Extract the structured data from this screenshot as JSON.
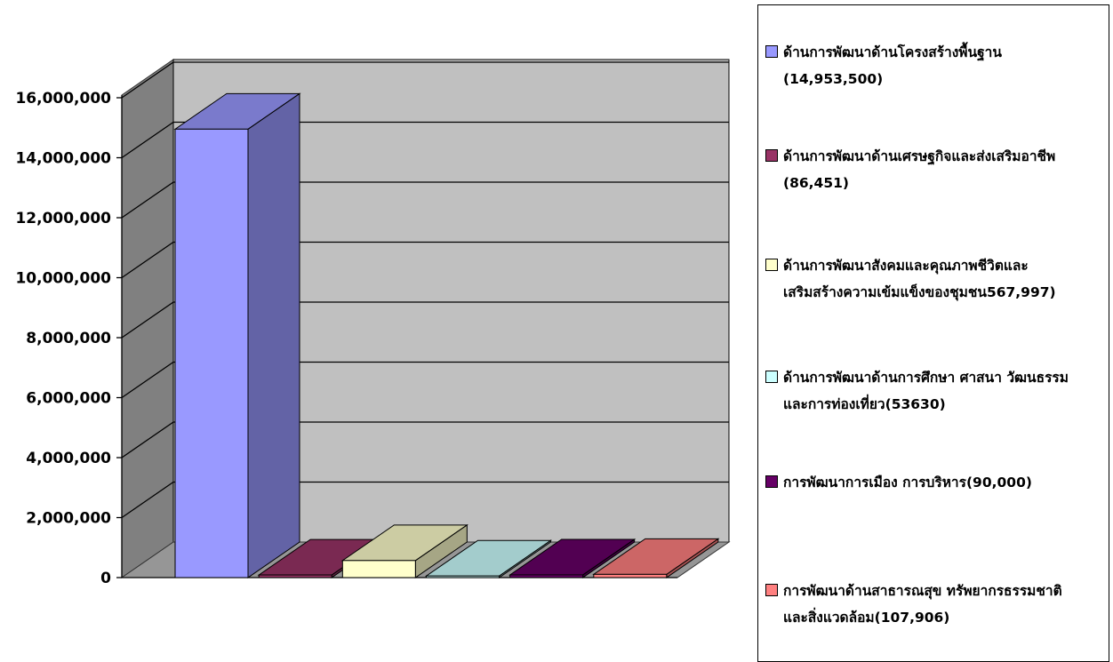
{
  "chart_data": {
    "type": "bar",
    "categories": [
      "ด้านการพัฒนาด้านโครงสร้างพื้นฐาน",
      "ด้านการพัฒนาด้านเศรษฐกิจและส่งเสริมอาชีพ",
      "ด้านการพัฒนาสังคมและคุณภาพชีวิตและเสริมสร้างความเข้มแข็งของชุมชน",
      "ด้านการพัฒนาด้านการศึกษา ศาสนา วัฒนธรรมและการท่องเที่ยว",
      "การพัฒนาการเมือง การบริหาร",
      "การพัฒนาด้านสาธารณสุข ทรัพยากรธรรมชาติและสิ่งแวดล้อม"
    ],
    "values": [
      14953500,
      86451,
      567997,
      53630,
      90000,
      107906
    ],
    "ylim": [
      0,
      16000000
    ],
    "yticks": [
      "0",
      "2,000,000",
      "4,000,000",
      "6,000,000",
      "8,000,000",
      "10,000,000",
      "12,000,000",
      "14,000,000",
      "16,000,000"
    ],
    "grid": true,
    "legend_position": "right",
    "colors": [
      "#9999ff",
      "#993366",
      "#ffffcc",
      "#ccffff",
      "#660066",
      "#ff8080"
    ]
  },
  "legend": {
    "items": [
      {
        "line1": "ด้านการพัฒนาด้านโครงสร้างพื้นฐาน",
        "line2": "(14,953,500)"
      },
      {
        "line1": "ด้านการพัฒนาด้านเศรษฐกิจและส่งเสริมอาชีพ",
        "line2": "(86,451)"
      },
      {
        "line1": "ด้านการพัฒนาสังคมและคุณภาพชีวิตและ",
        "line2": "เสริมสร้างความเข้มแข็งของชุมชน567,997)"
      },
      {
        "line1": "ด้านการพัฒนาด้านการศึกษา ศาสนา วัฒนธรรม",
        "line2": "และการท่องเที่ยว(53630)"
      },
      {
        "line1": "การพัฒนาการเมือง การบริหาร(90,000)",
        "line2": ""
      },
      {
        "line1": "การพัฒนาด้านสาธารณสุข ทรัพยากรธรรมชาติ",
        "line2": "และสิ่งแวดล้อม(107,906)"
      }
    ]
  }
}
